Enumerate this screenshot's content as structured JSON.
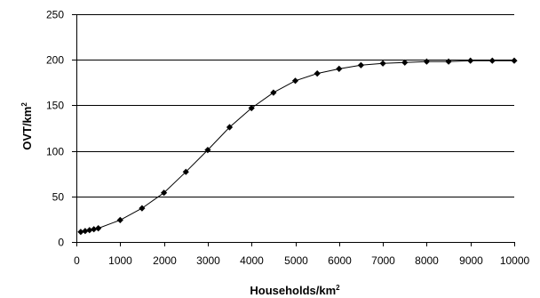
{
  "chart_data": {
    "type": "scatter",
    "xlabel": "Households/km",
    "xlabel_superscript": "2",
    "ylabel": "OVT/km",
    "ylabel_superscript": "2",
    "xlim": [
      0,
      10000
    ],
    "ylim": [
      0,
      250
    ],
    "x_ticks": [
      0,
      1000,
      2000,
      3000,
      4000,
      5000,
      6000,
      7000,
      8000,
      9000,
      10000
    ],
    "y_ticks": [
      0,
      50,
      100,
      150,
      200,
      250
    ],
    "grid": "horizontal",
    "legend": "none",
    "series": [
      {
        "marker": "diamond",
        "color": "#000000",
        "line": "connected",
        "x": [
          100,
          200,
          300,
          400,
          500,
          1000,
          1500,
          2000,
          2500,
          3000,
          3500,
          4000,
          4500,
          5000,
          5500,
          6000,
          6500,
          7000,
          7500,
          8000,
          8500,
          9000,
          9500,
          10000
        ],
        "y": [
          11,
          12,
          13,
          14,
          15,
          24,
          37,
          54,
          77,
          101,
          126,
          147,
          164,
          177,
          185,
          190,
          194,
          196,
          197,
          198,
          198,
          199,
          199,
          199
        ]
      }
    ]
  }
}
